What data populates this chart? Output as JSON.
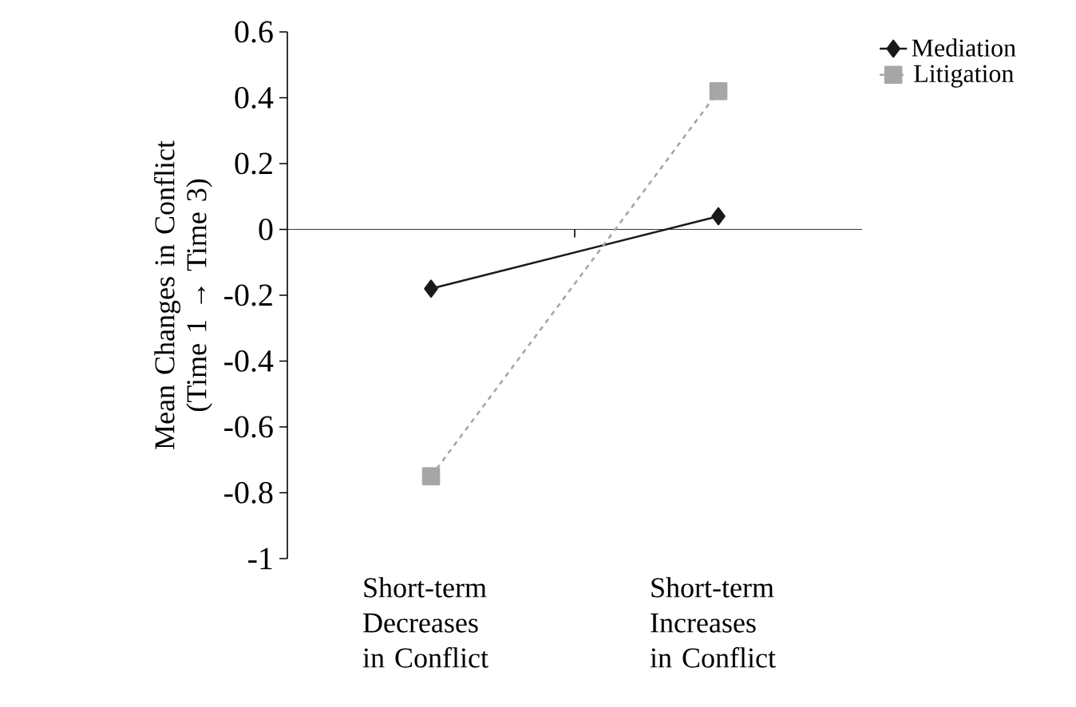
{
  "chart_data": {
    "type": "line",
    "ylabel": "Mean Changes in Conflict (Time 1 → Time 3)",
    "categories": [
      "Short-term Decreases in Conflict",
      "Short-term Increases in Conflict"
    ],
    "series": [
      {
        "name": "Mediation",
        "color": "#1a1a1a",
        "values": [
          -0.18,
          0.04
        ],
        "marker": "diamond",
        "line_style": "solid"
      },
      {
        "name": "Litigation",
        "color": "#a6a6a6",
        "values": [
          -0.75,
          0.42
        ],
        "marker": "square",
        "line_style": "dashed"
      }
    ],
    "ylim": [
      -1,
      0.6
    ],
    "yticks": [
      -1,
      -0.8,
      -0.6,
      -0.4,
      -0.2,
      0,
      0.2,
      0.4,
      0.6
    ],
    "ref_lines": [
      {
        "axis": "y",
        "value": 0,
        "color": "#000000"
      }
    ],
    "grid": false,
    "legend": "top right"
  }
}
